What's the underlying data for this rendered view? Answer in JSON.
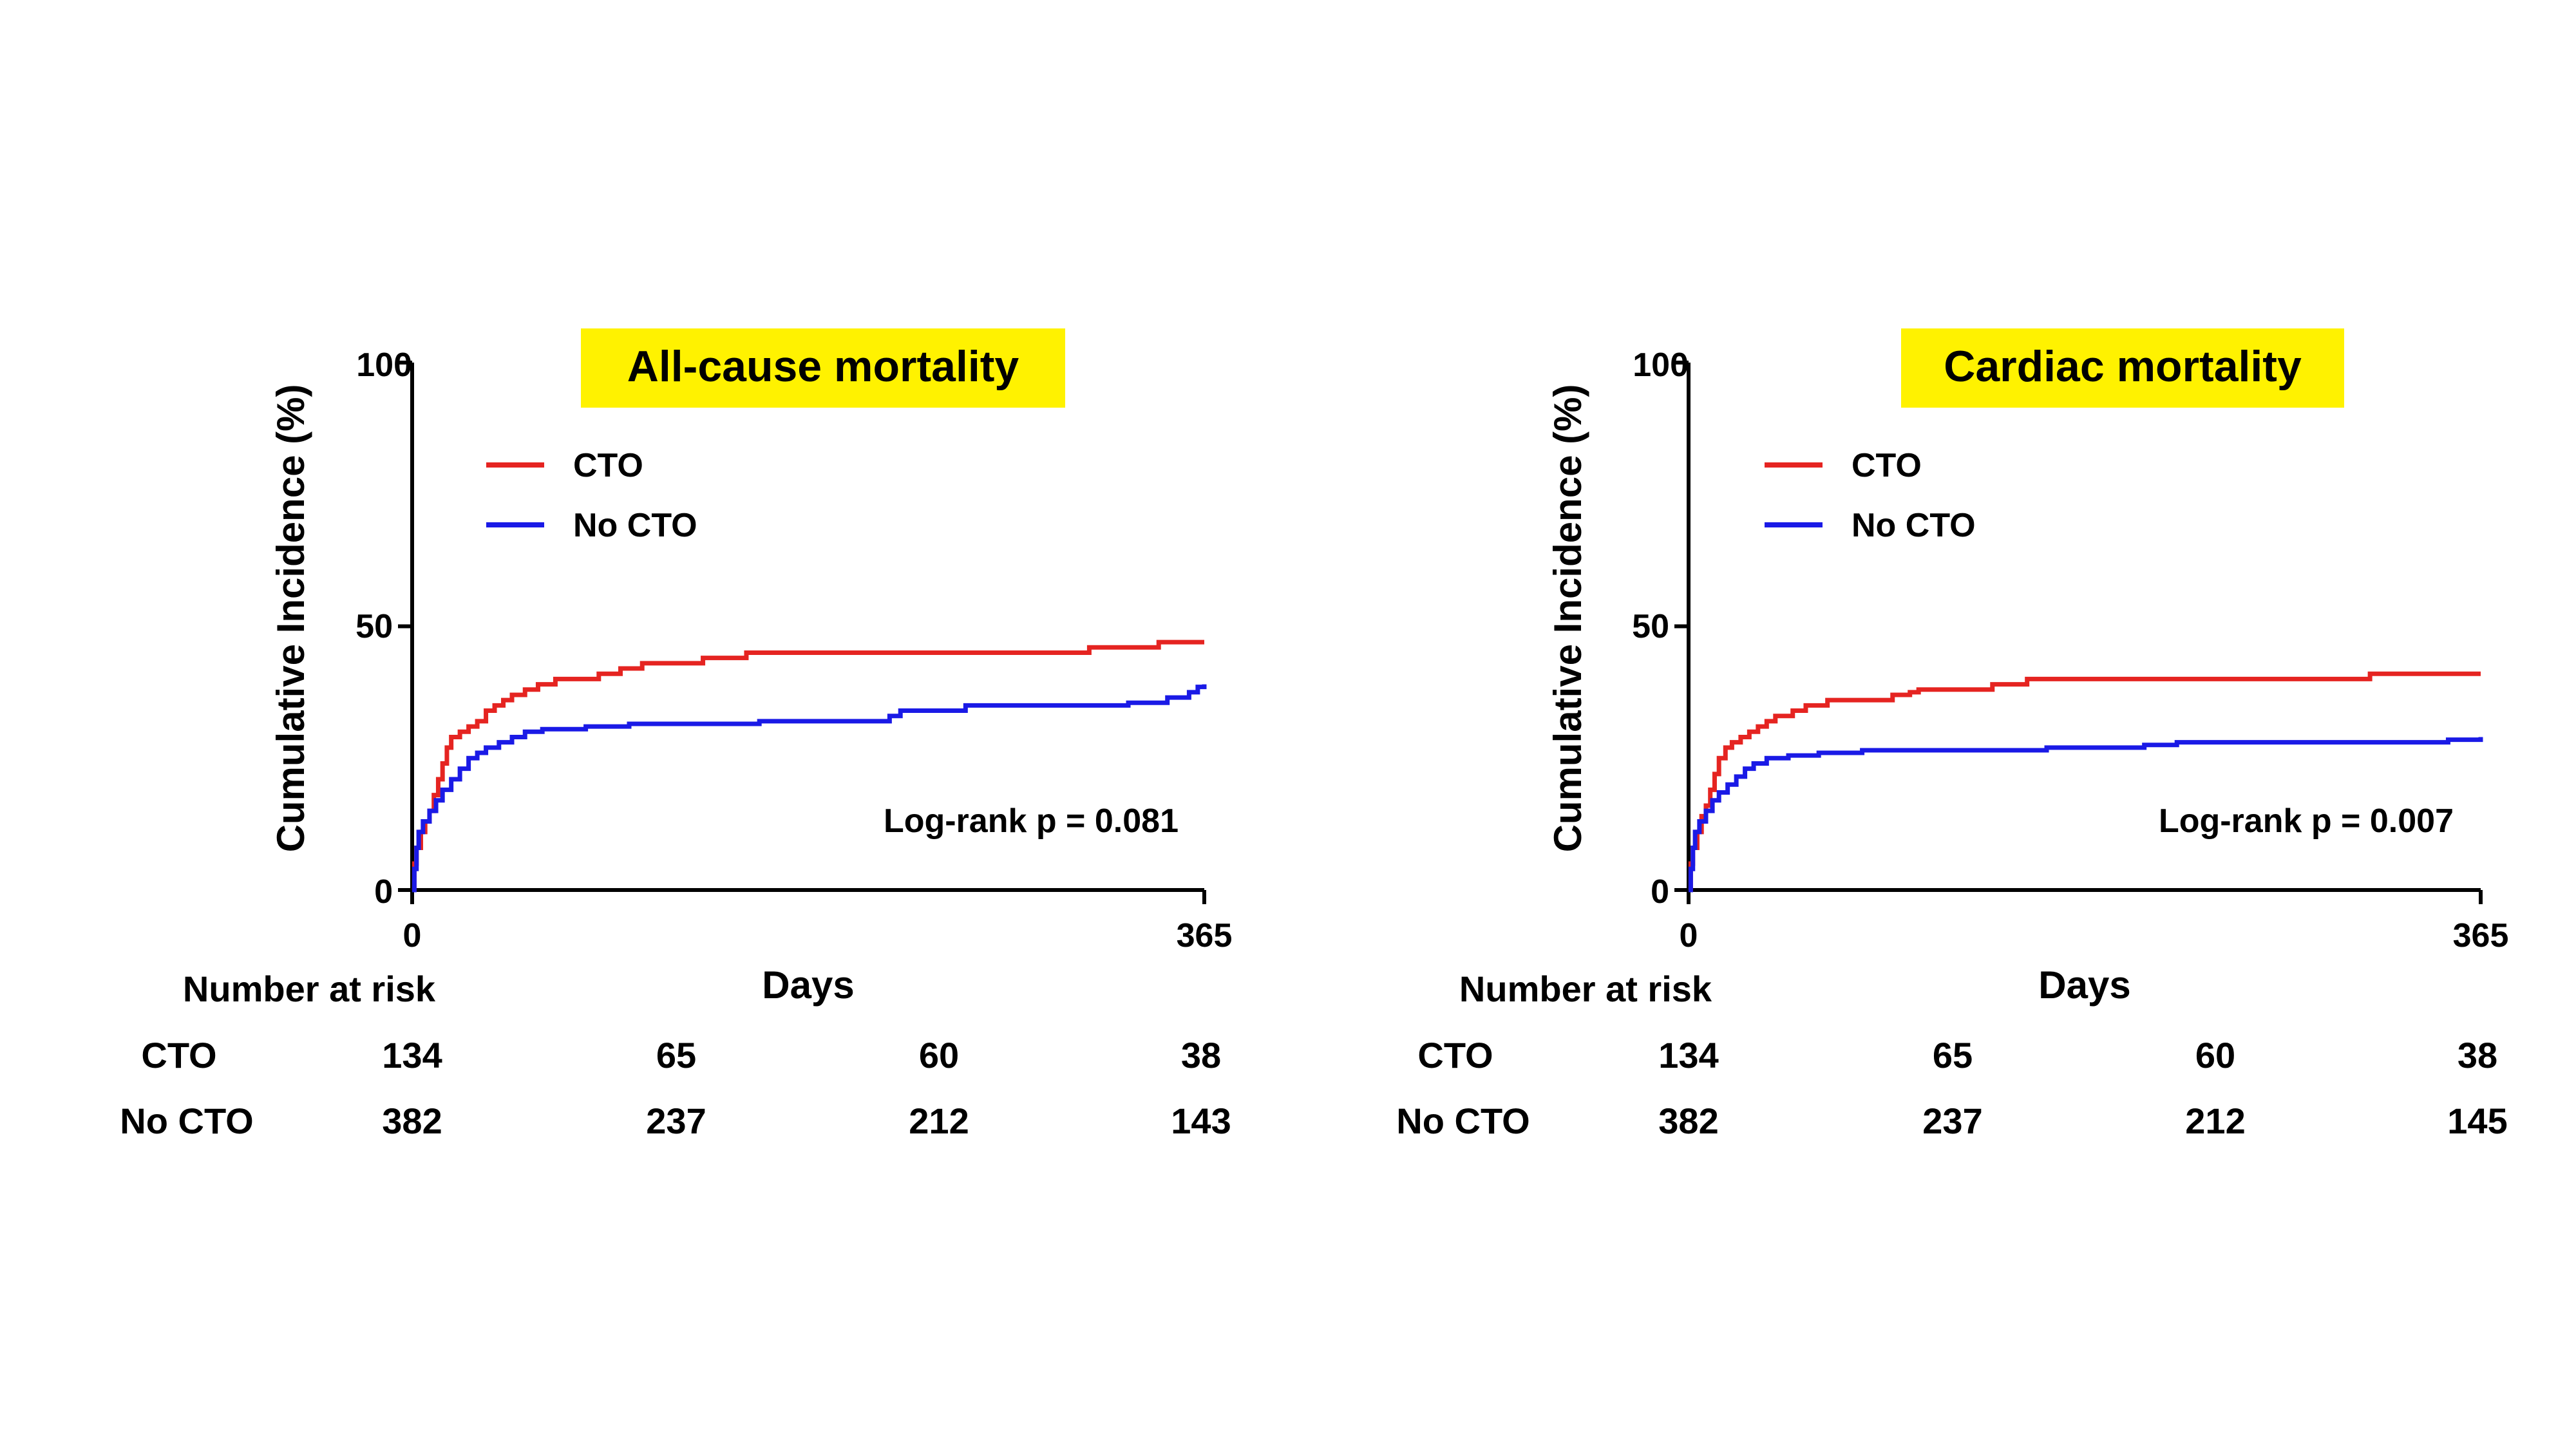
{
  "chart_data": [
    {
      "type": "line",
      "title": "All-cause mortality",
      "xlabel": "Days",
      "ylabel": "Cumulative Incidence (%)",
      "xlim": [
        0,
        365
      ],
      "ylim": [
        0,
        100
      ],
      "x_ticks": [
        "0",
        "365"
      ],
      "y_ticks": [
        "0",
        "50",
        "100"
      ],
      "legend_position": "top-left",
      "annotation": "Log-rank p = 0.081",
      "series": [
        {
          "name": "CTO",
          "color": "#e52421",
          "points": [
            [
              0,
              0
            ],
            [
              1,
              5
            ],
            [
              2,
              8
            ],
            [
              4,
              11
            ],
            [
              6,
              13
            ],
            [
              8,
              15
            ],
            [
              10,
              18
            ],
            [
              12,
              21
            ],
            [
              14,
              24
            ],
            [
              16,
              27
            ],
            [
              18,
              29
            ],
            [
              22,
              30
            ],
            [
              26,
              31
            ],
            [
              30,
              32
            ],
            [
              34,
              34
            ],
            [
              38,
              35
            ],
            [
              42,
              36
            ],
            [
              46,
              37
            ],
            [
              52,
              38
            ],
            [
              58,
              39
            ],
            [
              66,
              40
            ],
            [
              80,
              40
            ],
            [
              86,
              41
            ],
            [
              96,
              42
            ],
            [
              106,
              43
            ],
            [
              130,
              43
            ],
            [
              134,
              44
            ],
            [
              150,
              44
            ],
            [
              154,
              45
            ],
            [
              310,
              45
            ],
            [
              312,
              46
            ],
            [
              342,
              46
            ],
            [
              344,
              47
            ],
            [
              365,
              47
            ]
          ]
        },
        {
          "name": "No CTO",
          "color": "#1a1ae6",
          "points": [
            [
              0,
              0
            ],
            [
              1,
              4
            ],
            [
              2,
              8
            ],
            [
              3,
              11
            ],
            [
              5,
              13
            ],
            [
              8,
              15
            ],
            [
              11,
              17
            ],
            [
              14,
              19
            ],
            [
              18,
              21
            ],
            [
              22,
              23
            ],
            [
              26,
              25
            ],
            [
              30,
              26
            ],
            [
              34,
              27
            ],
            [
              40,
              28
            ],
            [
              46,
              29
            ],
            [
              52,
              30
            ],
            [
              60,
              30.5
            ],
            [
              80,
              31
            ],
            [
              100,
              31.5
            ],
            [
              155,
              31.5
            ],
            [
              160,
              32
            ],
            [
              220,
              33
            ],
            [
              225,
              34
            ],
            [
              255,
              35
            ],
            [
              330,
              35.5
            ],
            [
              348,
              36.5
            ],
            [
              358,
              37.5
            ],
            [
              362,
              38.5
            ],
            [
              365,
              39
            ]
          ]
        }
      ],
      "risk_table": {
        "header": "Number at risk",
        "rows": [
          {
            "label": "CTO",
            "values": [
              "134",
              "65",
              "60",
              "38"
            ]
          },
          {
            "label": "No CTO",
            "values": [
              "382",
              "237",
              "212",
              "143"
            ]
          }
        ]
      }
    },
    {
      "type": "line",
      "title": "Cardiac mortality",
      "xlabel": "Days",
      "ylabel": "Cumulative Incidence (%)",
      "xlim": [
        0,
        365
      ],
      "ylim": [
        0,
        100
      ],
      "x_ticks": [
        "0",
        "365"
      ],
      "y_ticks": [
        "0",
        "50",
        "100"
      ],
      "legend_position": "top-left",
      "annotation": "Log-rank p = 0.007",
      "series": [
        {
          "name": "CTO",
          "color": "#e52421",
          "points": [
            [
              0,
              0
            ],
            [
              1,
              5
            ],
            [
              2,
              8
            ],
            [
              4,
              11
            ],
            [
              6,
              14
            ],
            [
              8,
              16
            ],
            [
              10,
              19
            ],
            [
              12,
              22
            ],
            [
              14,
              25
            ],
            [
              17,
              27
            ],
            [
              20,
              28
            ],
            [
              24,
              29
            ],
            [
              28,
              30
            ],
            [
              32,
              31
            ],
            [
              36,
              32
            ],
            [
              40,
              33
            ],
            [
              48,
              34
            ],
            [
              54,
              35
            ],
            [
              64,
              36
            ],
            [
              90,
              36
            ],
            [
              94,
              37
            ],
            [
              102,
              37.5
            ],
            [
              106,
              38
            ],
            [
              138,
              38
            ],
            [
              140,
              39
            ],
            [
              154,
              39
            ],
            [
              156,
              40
            ],
            [
              310,
              40
            ],
            [
              314,
              41
            ],
            [
              365,
              41
            ]
          ]
        },
        {
          "name": "No CTO",
          "color": "#1a1ae6",
          "points": [
            [
              0,
              0
            ],
            [
              1,
              4
            ],
            [
              2,
              8
            ],
            [
              3,
              11
            ],
            [
              5,
              13
            ],
            [
              8,
              15
            ],
            [
              11,
              17
            ],
            [
              14,
              18.5
            ],
            [
              18,
              20
            ],
            [
              22,
              21.5
            ],
            [
              26,
              23
            ],
            [
              30,
              24
            ],
            [
              36,
              25
            ],
            [
              46,
              25.5
            ],
            [
              60,
              26
            ],
            [
              80,
              26.5
            ],
            [
              160,
              26.5
            ],
            [
              165,
              27
            ],
            [
              205,
              27
            ],
            [
              210,
              27.5
            ],
            [
              225,
              28
            ],
            [
              345,
              28
            ],
            [
              350,
              28.5
            ],
            [
              365,
              29
            ]
          ]
        }
      ],
      "risk_table": {
        "header": "Number at risk",
        "rows": [
          {
            "label": "CTO",
            "values": [
              "134",
              "65",
              "60",
              "38"
            ]
          },
          {
            "label": "No CTO",
            "values": [
              "382",
              "237",
              "212",
              "145"
            ]
          }
        ]
      }
    }
  ]
}
